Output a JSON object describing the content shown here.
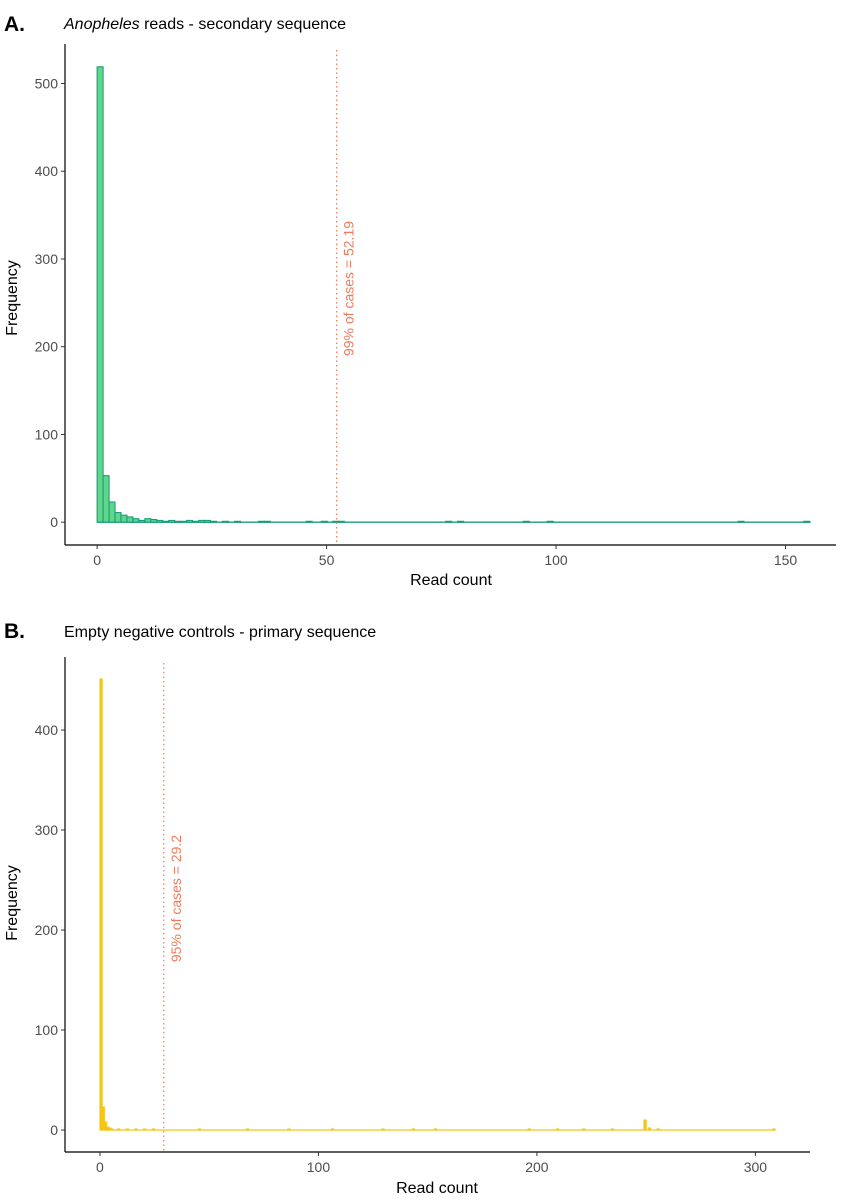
{
  "chart_data": [
    {
      "type": "bar",
      "panel_label": "A.",
      "title_italic": "Anopheles",
      "title_rest": " reads - secondary sequence",
      "xlabel": "Read count",
      "ylabel": "Frequency",
      "xlim": [
        -7,
        161
      ],
      "ylim": [
        -26,
        545
      ],
      "xticks": [
        0,
        50,
        100,
        150
      ],
      "yticks": [
        0,
        100,
        200,
        300,
        400,
        500
      ],
      "bin_width": 1.3,
      "fill_color": "#5fd68a",
      "line_color": "#1a9e7a",
      "vline": {
        "x": 52.19,
        "label": "99% of cases = 52.19",
        "color": "#f07b5c"
      },
      "bins": [
        {
          "x": 0.65,
          "y": 519
        },
        {
          "x": 1.95,
          "y": 53
        },
        {
          "x": 3.25,
          "y": 23
        },
        {
          "x": 4.55,
          "y": 11
        },
        {
          "x": 5.85,
          "y": 8
        },
        {
          "x": 7.15,
          "y": 6
        },
        {
          "x": 8.45,
          "y": 4
        },
        {
          "x": 9.75,
          "y": 2
        },
        {
          "x": 11.05,
          "y": 4
        },
        {
          "x": 12.35,
          "y": 3
        },
        {
          "x": 13.65,
          "y": 2
        },
        {
          "x": 14.95,
          "y": 1
        },
        {
          "x": 16.25,
          "y": 2
        },
        {
          "x": 17.55,
          "y": 1
        },
        {
          "x": 18.85,
          "y": 1
        },
        {
          "x": 20.15,
          "y": 2
        },
        {
          "x": 21.45,
          "y": 1
        },
        {
          "x": 22.75,
          "y": 2
        },
        {
          "x": 24.05,
          "y": 2
        },
        {
          "x": 25.35,
          "y": 1
        },
        {
          "x": 28.0,
          "y": 1
        },
        {
          "x": 30.6,
          "y": 1
        },
        {
          "x": 35.8,
          "y": 1
        },
        {
          "x": 37.1,
          "y": 1
        },
        {
          "x": 46.2,
          "y": 1
        },
        {
          "x": 49.5,
          "y": 1
        },
        {
          "x": 52.0,
          "y": 1
        },
        {
          "x": 53.2,
          "y": 1
        },
        {
          "x": 76.6,
          "y": 1
        },
        {
          "x": 79.2,
          "y": 1
        },
        {
          "x": 93.5,
          "y": 1
        },
        {
          "x": 98.7,
          "y": 1
        },
        {
          "x": 140.3,
          "y": 1
        },
        {
          "x": 154.6,
          "y": 1
        }
      ],
      "x_max": 155.5
    },
    {
      "type": "bar",
      "panel_label": "B.",
      "title_italic": "",
      "title_rest": "Empty negative controls - primary sequence",
      "xlabel": "Read count",
      "ylabel": "Frequency",
      "xlim": [
        -16,
        325
      ],
      "ylim": [
        -22,
        473
      ],
      "xticks": [
        0,
        100,
        200,
        300
      ],
      "yticks": [
        0,
        100,
        200,
        300,
        400
      ],
      "bin_width": 1.0,
      "fill_color": "#f5c518",
      "line_color": "#f5c518",
      "vline": {
        "x": 29.2,
        "label": "95% of cases = 29.2",
        "color": "#f07b5c"
      },
      "bins": [
        {
          "x": 0.5,
          "y": 451
        },
        {
          "x": 1.5,
          "y": 23
        },
        {
          "x": 2.5,
          "y": 8
        },
        {
          "x": 3.5,
          "y": 3
        },
        {
          "x": 4.5,
          "y": 2
        },
        {
          "x": 5.5,
          "y": 1
        },
        {
          "x": 8.5,
          "y": 1
        },
        {
          "x": 12.5,
          "y": 1
        },
        {
          "x": 16.5,
          "y": 1
        },
        {
          "x": 20.5,
          "y": 1
        },
        {
          "x": 24.5,
          "y": 1
        },
        {
          "x": 45.5,
          "y": 1
        },
        {
          "x": 67.5,
          "y": 1
        },
        {
          "x": 86.5,
          "y": 1
        },
        {
          "x": 106.5,
          "y": 1
        },
        {
          "x": 129.5,
          "y": 1
        },
        {
          "x": 143.5,
          "y": 1
        },
        {
          "x": 153.5,
          "y": 1
        },
        {
          "x": 196.5,
          "y": 1
        },
        {
          "x": 209.5,
          "y": 1
        },
        {
          "x": 221.5,
          "y": 1
        },
        {
          "x": 234.5,
          "y": 1
        },
        {
          "x": 249.5,
          "y": 10
        },
        {
          "x": 251.5,
          "y": 2
        },
        {
          "x": 255.5,
          "y": 1
        },
        {
          "x": 308.5,
          "y": 1
        }
      ],
      "x_max": 309
    }
  ]
}
